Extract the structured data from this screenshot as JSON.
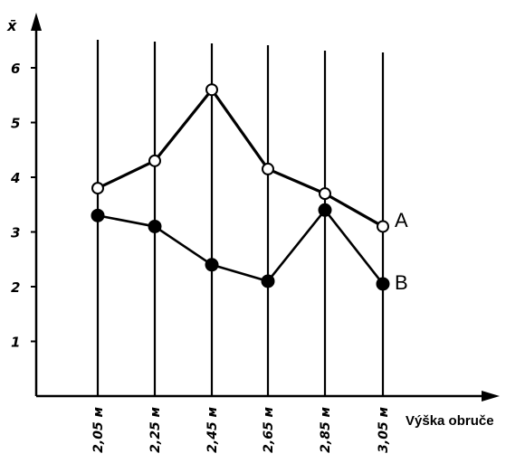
{
  "chart_data": {
    "type": "line",
    "xlabel": "Výška obruče",
    "ylabel": "x̄",
    "categories": [
      "2,05 м",
      "2,25 м",
      "2,45 м",
      "2,65 м",
      "2,85 м",
      "3,05 м"
    ],
    "yticks": [
      "1",
      "2",
      "3",
      "4",
      "5",
      "6"
    ],
    "ylim": [
      0,
      6.3
    ],
    "grid": "vertical lines at each category",
    "series": [
      {
        "name": "A",
        "marker": "open-circle",
        "values": [
          3.8,
          4.3,
          5.6,
          4.15,
          3.7,
          3.1
        ]
      },
      {
        "name": "B",
        "marker": "filled-circle",
        "values": [
          3.3,
          3.1,
          2.4,
          2.1,
          3.4,
          2.05
        ]
      }
    ],
    "legend": "right, next to line ends"
  }
}
